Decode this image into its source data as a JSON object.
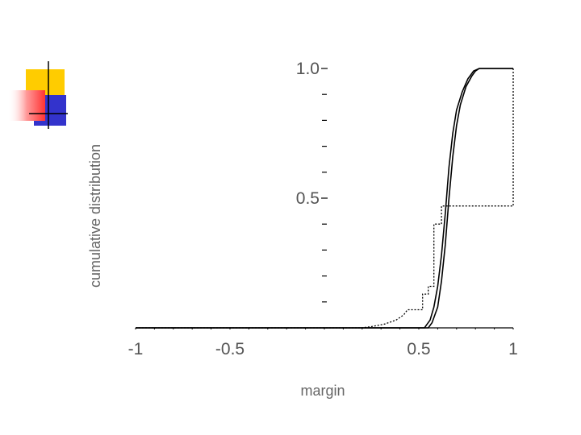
{
  "chart_data": {
    "type": "line",
    "title": "",
    "xlabel": "margin",
    "ylabel": "cumulative distribution",
    "xlim": [
      -1,
      1
    ],
    "ylim": [
      0,
      1
    ],
    "x_ticks": [
      {
        "value": -1,
        "label": "-1"
      },
      {
        "value": -0.5,
        "label": "-0.5"
      },
      {
        "value": 0.5,
        "label": "0.5"
      },
      {
        "value": 1,
        "label": "1"
      }
    ],
    "y_ticks": [
      {
        "value": 0.5,
        "label": "0.5"
      },
      {
        "value": 1.0,
        "label": "1.0"
      }
    ],
    "y_minor_ticks": [
      0.1,
      0.2,
      0.3,
      0.4,
      0.6,
      0.7,
      0.8,
      0.9
    ],
    "series": [
      {
        "style": "solid",
        "color": "#000000",
        "points": [
          [
            -1,
            0
          ],
          [
            0.55,
            0
          ],
          [
            0.57,
            0.02
          ],
          [
            0.6,
            0.08
          ],
          [
            0.62,
            0.18
          ],
          [
            0.64,
            0.32
          ],
          [
            0.66,
            0.5
          ],
          [
            0.68,
            0.66
          ],
          [
            0.7,
            0.78
          ],
          [
            0.72,
            0.86
          ],
          [
            0.75,
            0.93
          ],
          [
            0.78,
            0.97
          ],
          [
            0.8,
            0.99
          ],
          [
            0.82,
            1.0
          ],
          [
            1.0,
            1.0
          ]
        ]
      },
      {
        "style": "solid",
        "color": "#000000",
        "points": [
          [
            -1,
            0
          ],
          [
            0.53,
            0
          ],
          [
            0.56,
            0.03
          ],
          [
            0.58,
            0.08
          ],
          [
            0.6,
            0.16
          ],
          [
            0.62,
            0.28
          ],
          [
            0.64,
            0.44
          ],
          [
            0.66,
            0.62
          ],
          [
            0.68,
            0.75
          ],
          [
            0.7,
            0.84
          ],
          [
            0.73,
            0.91
          ],
          [
            0.76,
            0.96
          ],
          [
            0.79,
            0.99
          ],
          [
            0.82,
            1.0
          ],
          [
            1.0,
            1.0
          ]
        ]
      },
      {
        "style": "dotted",
        "color": "#000000",
        "points": [
          [
            -1,
            0
          ],
          [
            0.2,
            0
          ],
          [
            0.25,
            0.005
          ],
          [
            0.32,
            0.015
          ],
          [
            0.38,
            0.03
          ],
          [
            0.42,
            0.05
          ],
          [
            0.44,
            0.07
          ],
          [
            0.52,
            0.07
          ],
          [
            0.52,
            0.13
          ],
          [
            0.55,
            0.13
          ],
          [
            0.55,
            0.16
          ],
          [
            0.58,
            0.16
          ],
          [
            0.58,
            0.4
          ],
          [
            0.62,
            0.4
          ],
          [
            0.62,
            0.47
          ],
          [
            1.0,
            0.47
          ],
          [
            1.0,
            1.0
          ]
        ]
      }
    ]
  },
  "decoration": {
    "yellow": "#ffcc00",
    "red": "#ff3333",
    "blue": "#3333cc",
    "line": "#000000"
  }
}
